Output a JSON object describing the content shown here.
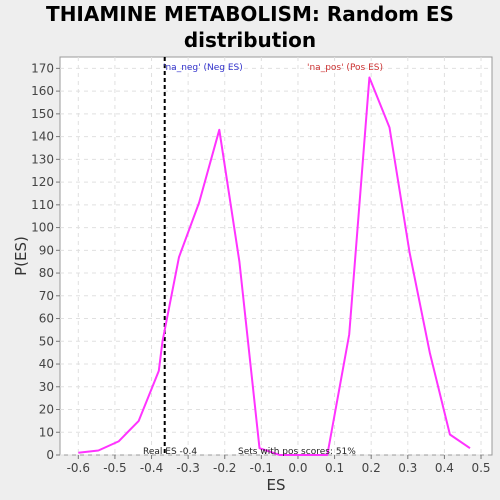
{
  "chart_data": {
    "type": "line",
    "title_line1": "THIAMINE METABOLISM: Random ES",
    "title_line2": "distribution",
    "xlabel": "ES",
    "ylabel": "P(ES)",
    "xlim": [
      -0.65,
      0.53
    ],
    "ylim": [
      0,
      175
    ],
    "x_ticks": [
      -0.6,
      -0.5,
      -0.4,
      -0.3,
      -0.2,
      -0.1,
      0.0,
      0.1,
      0.2,
      0.3,
      0.4,
      0.5
    ],
    "x_tick_labels": [
      "-0.6",
      "-0.5",
      "-0.4",
      "-0.3",
      "-0.2",
      "-0.1",
      "0.0",
      "0.1",
      "0.2",
      "0.3",
      "0.4",
      "0.5"
    ],
    "y_ticks": [
      0,
      10,
      20,
      30,
      40,
      50,
      60,
      70,
      80,
      90,
      100,
      110,
      120,
      130,
      140,
      150,
      160,
      170
    ],
    "y_tick_labels": [
      "0",
      "10",
      "20",
      "30",
      "40",
      "50",
      "60",
      "70",
      "80",
      "90",
      "100",
      "110",
      "120",
      "130",
      "140",
      "150",
      "160",
      "170"
    ],
    "grid": true,
    "series": [
      {
        "color": "#ff33ff",
        "points": [
          {
            "x": -0.6,
            "y": 1
          },
          {
            "x": -0.545,
            "y": 2
          },
          {
            "x": -0.49,
            "y": 6
          },
          {
            "x": -0.435,
            "y": 15
          },
          {
            "x": -0.38,
            "y": 37
          },
          {
            "x": -0.37,
            "y": 50
          },
          {
            "x": -0.325,
            "y": 87
          },
          {
            "x": -0.27,
            "y": 111
          },
          {
            "x": -0.215,
            "y": 143
          },
          {
            "x": -0.16,
            "y": 85
          },
          {
            "x": -0.105,
            "y": 3
          },
          {
            "x": -0.05,
            "y": 0
          },
          {
            "x": 0.0,
            "y": 0
          },
          {
            "x": 0.05,
            "y": 0
          },
          {
            "x": 0.08,
            "y": 0
          },
          {
            "x": 0.14,
            "y": 53
          },
          {
            "x": 0.195,
            "y": 166
          },
          {
            "x": 0.25,
            "y": 144
          },
          {
            "x": 0.305,
            "y": 89
          },
          {
            "x": 0.36,
            "y": 45
          },
          {
            "x": 0.415,
            "y": 9
          },
          {
            "x": 0.47,
            "y": 3
          }
        ]
      }
    ],
    "real_es_line": {
      "x": -0.364,
      "color": "#000000"
    },
    "annotations": {
      "neg_label": "'na_neg' (Neg ES)",
      "neg_color": "#3333cc",
      "pos_label": "'na_pos' (Pos ES)",
      "pos_color": "#cc3333",
      "real_es_label": "Real ES -0.4",
      "pos_scores_label": "Sets with pos scores: 51%"
    }
  }
}
